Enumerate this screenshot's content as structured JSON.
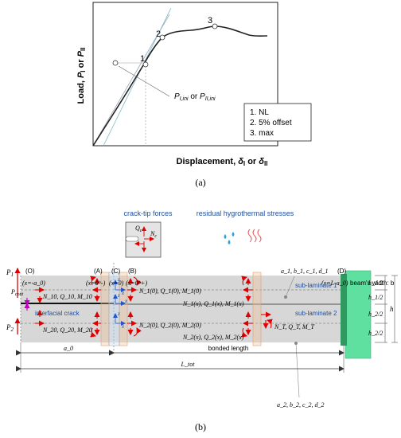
{
  "panel_a": {
    "caption": "(a)",
    "y_axis_label": "Load, P_I or P_II",
    "x_axis_label": "Displacement, δ_I or δ_II",
    "point_labels": [
      "1",
      "2",
      "3"
    ],
    "annotation": "P_I,ini or P_II,ini",
    "legend_items": [
      "1. NL",
      "2. 5% offset",
      "3. max"
    ]
  },
  "panel_b": {
    "caption": "(b)",
    "crack_tip_title": "crack-tip forces",
    "residual_title": "residual hygrothermal stresses",
    "Qc": "Q_c",
    "Nc": "N_c",
    "P1": "P_1",
    "P2": "P_2",
    "Pcont": "P_cont",
    "pos_O": "(O)",
    "pos_O_x": "(x=-a_0)",
    "pos_A": "(A)",
    "pos_A_x": "(x=0^-)",
    "pos_C": "(C)",
    "pos_C_x": "(x=0)",
    "pos_B": "(B)",
    "pos_B_x": "(x=0^+)",
    "pos_D": "(D)",
    "pos_D_x": "(x=L-a_0)",
    "beam_width": "beam's width: b",
    "coef_top": "a_1, b_1, c_1, d_1",
    "coef_bottom": "a_2, b_2, c_2, d_2",
    "sub1": "sub-laminate 1",
    "sub2": "sub-laminate 2",
    "interfacial_crack": "interfacial crack",
    "forces_10": "N_10, Q_10, M_10",
    "forces_20": "N_20, Q_20, M_20",
    "forces_1_0": "N_1(0), Q_1(0), M_1(0)",
    "forces_2_0": "N_2(0), Q_2(0), M_2(0)",
    "forces_1_x": "N_1(x), Q_1(x), M_1(x)",
    "forces_2_x": "N_2(x), Q_2(x), M_2(x)",
    "forces_T": "N_T, Q_T, M_T",
    "h1_top": "h_1/2",
    "h1_bot": "h_1/2",
    "h2_top": "h_2/2",
    "h2_bot": "h_2/2",
    "h": "h",
    "a0": "a_0",
    "bonded_length": "bonded length",
    "Ltot": "L_tot"
  }
}
